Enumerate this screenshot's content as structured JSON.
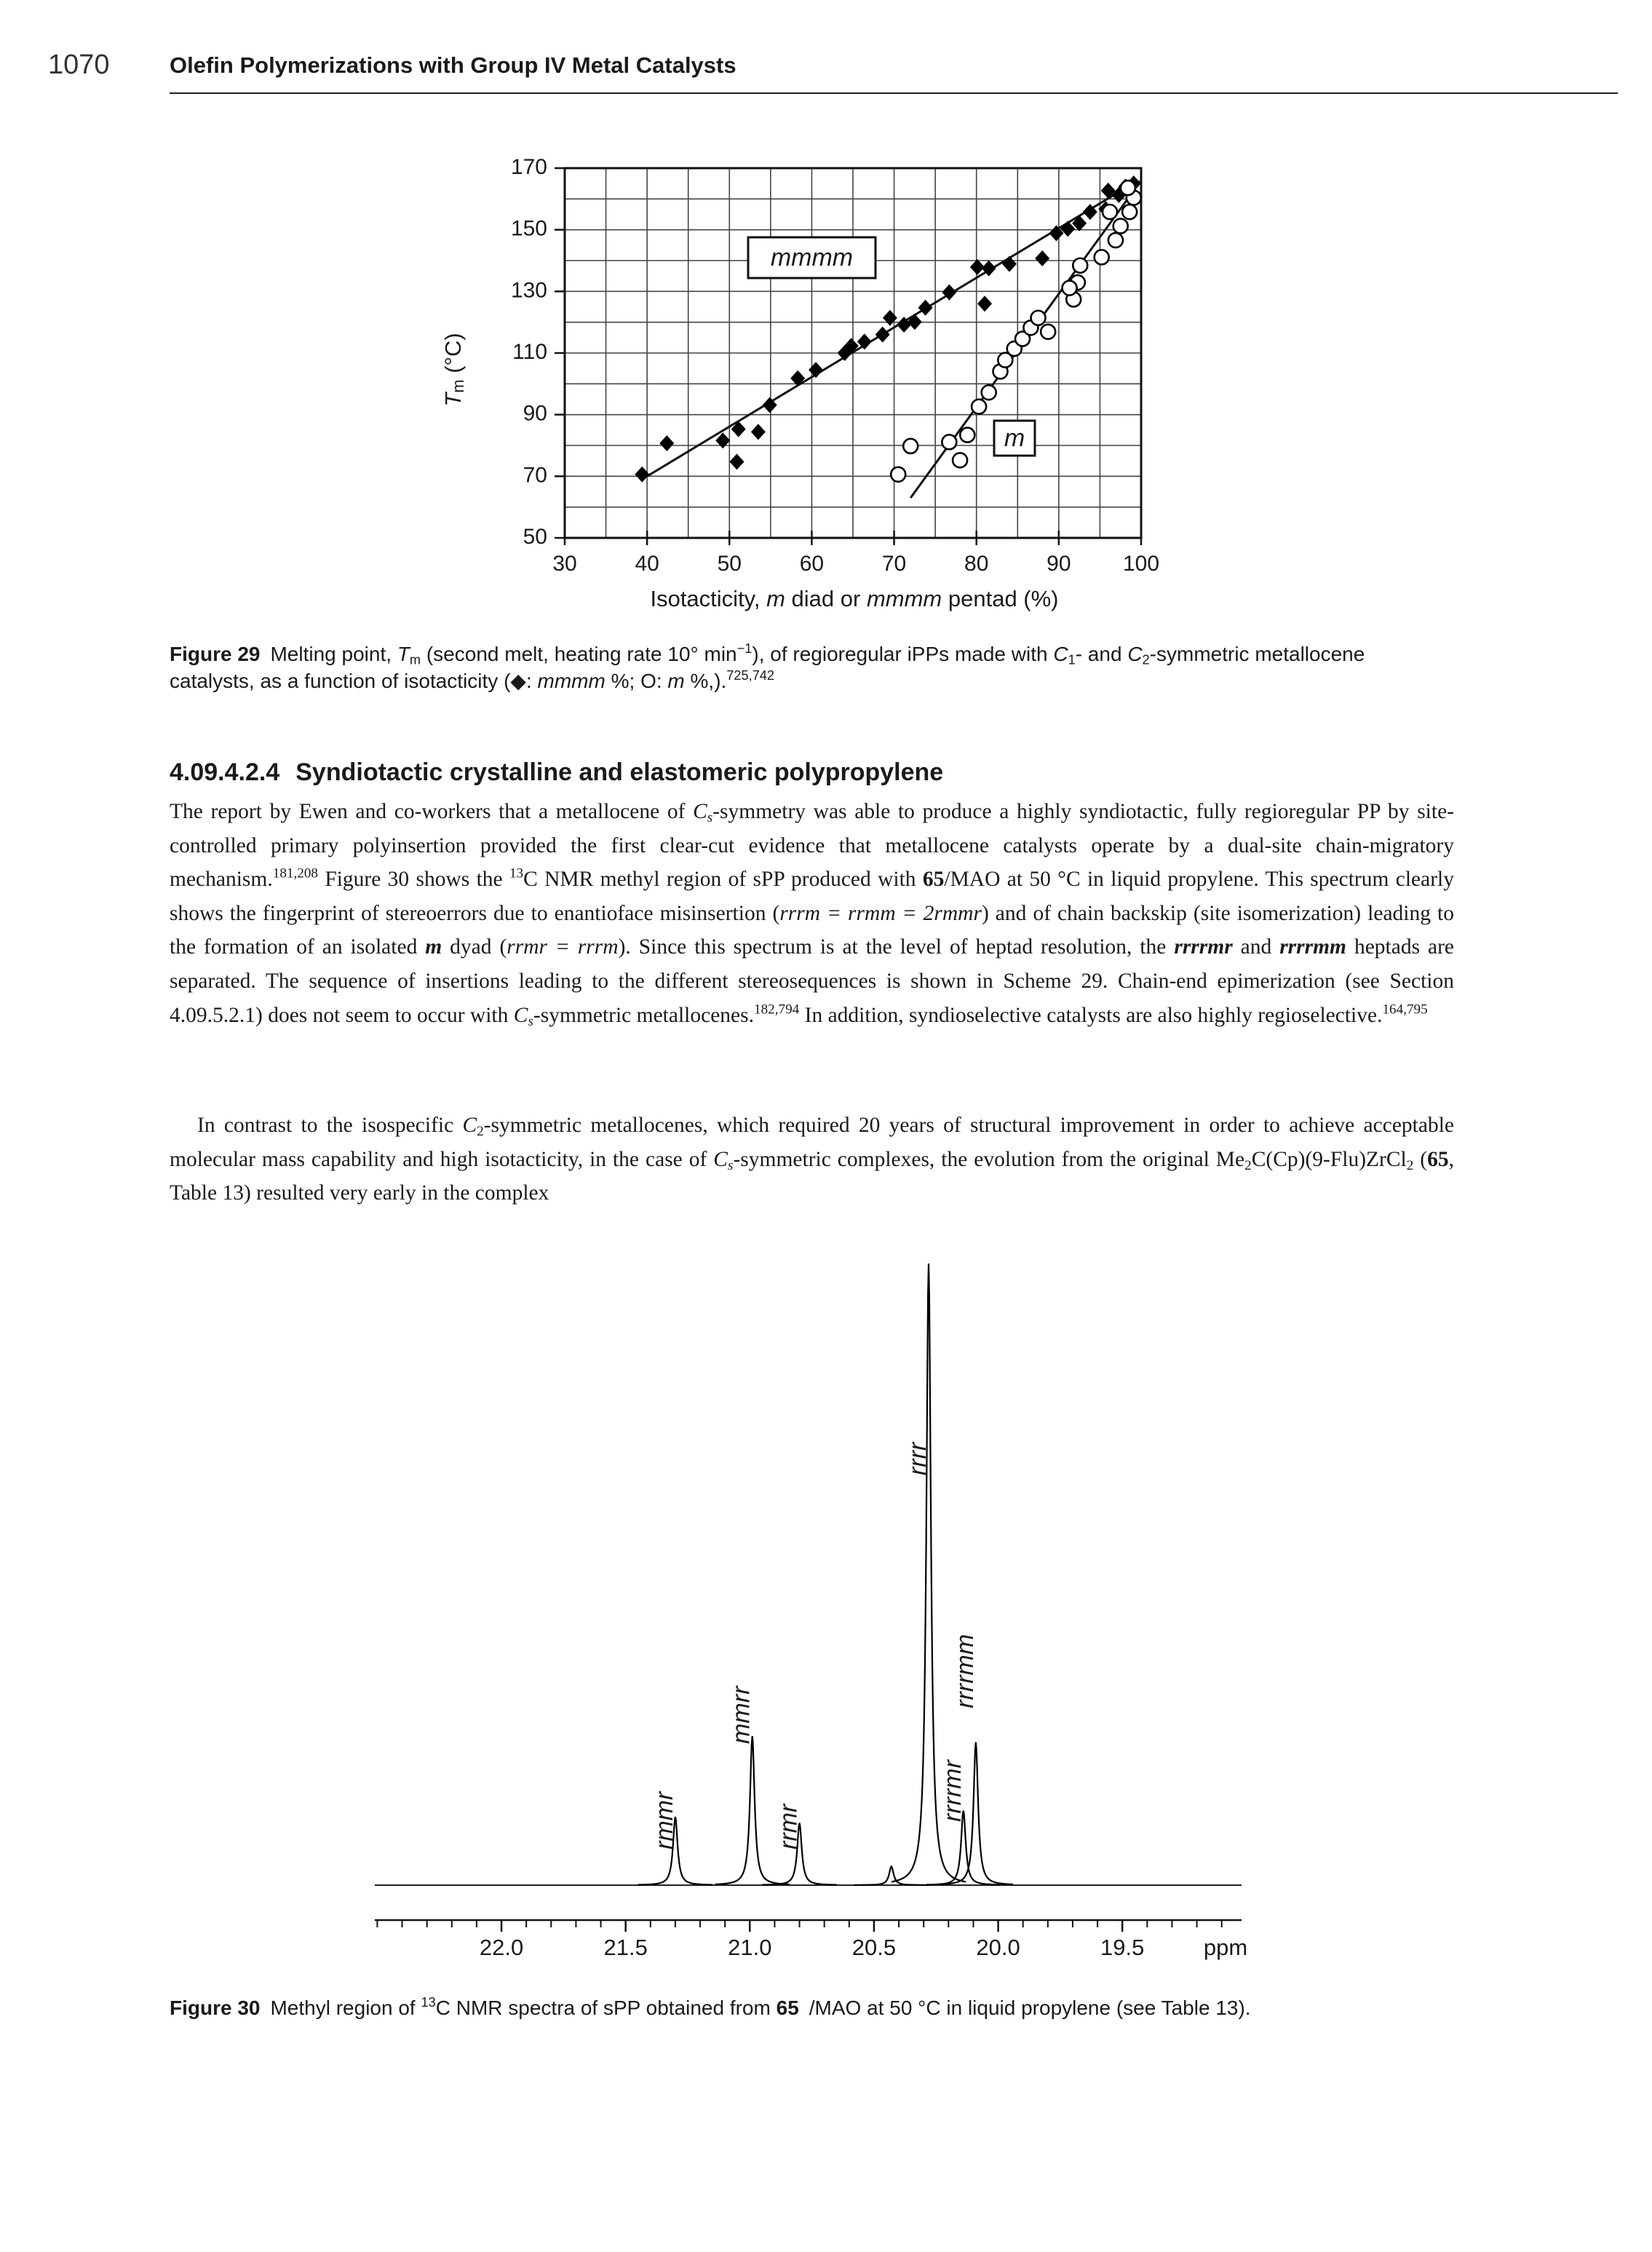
{
  "header": {
    "page_number": "1070",
    "running_title": "Olefin Polymerizations with Group IV Metal Catalysts"
  },
  "chart_data": [
    {
      "type": "scatter",
      "xlabel": [
        "Isotacticity, ",
        "m",
        " diad or ",
        "mmmm",
        " pentad (%)"
      ],
      "ylabel": [
        "T",
        "m",
        " (°C)"
      ],
      "xlim": [
        30,
        100
      ],
      "ylim": [
        50,
        170
      ],
      "xticks": [
        30,
        40,
        50,
        60,
        70,
        80,
        90,
        100
      ],
      "yticks": [
        50,
        70,
        90,
        110,
        130,
        150,
        170
      ],
      "xminor": [
        35,
        45,
        55,
        65,
        75,
        85,
        95
      ],
      "yminor": [
        60,
        80,
        100,
        120,
        140,
        160
      ],
      "grid": true,
      "series": [
        {
          "name": "mmmm",
          "marker": "diamond",
          "color": "#000000",
          "x": [
            39.4,
            42.4,
            49.2,
            51.1,
            53.5,
            50.9,
            54.9,
            58.3,
            60.5,
            64,
            64.8,
            66.4,
            68.6,
            69.5,
            71.2,
            72.5,
            73.8,
            76.7,
            80.1,
            81,
            81.5,
            84,
            88,
            89.7,
            91.1,
            92.5,
            93.8,
            95.7,
            97.3,
            98.1,
            99.1,
            96
          ],
          "y": [
            70.6,
            80.7,
            81.6,
            85.3,
            84.4,
            74.7,
            93.1,
            101.8,
            104.5,
            110,
            112.3,
            113.7,
            116,
            121.4,
            119.2,
            120.1,
            124.7,
            129.7,
            137.9,
            126,
            137.5,
            138.9,
            140.7,
            148.9,
            150.3,
            152.1,
            155.8,
            156.7,
            161.3,
            164,
            165,
            162.7
          ],
          "fit": {
            "x": [
              40,
              99
            ],
            "y": [
              70,
              165
            ]
          }
        },
        {
          "name": "m",
          "marker": "circle",
          "color": "#000000",
          "x": [
            70.5,
            72,
            78,
            76.7,
            78.9,
            80.3,
            81.5,
            82.9,
            83.5,
            84.6,
            85.6,
            86.6,
            87.5,
            88.7,
            91.8,
            92.3,
            91.3,
            92.6,
            95.2,
            96.9,
            97.5,
            98.6,
            99.1,
            98.4,
            96.2
          ],
          "y": [
            70.6,
            79.8,
            75.2,
            81.1,
            83.4,
            92.6,
            97.2,
            104,
            107.7,
            111.4,
            114.6,
            118.2,
            121.4,
            116.9,
            127.4,
            132.9,
            131.1,
            138.4,
            141.1,
            146.6,
            151.2,
            155.8,
            160.4,
            163.6,
            155.8
          ],
          "fit": {
            "x": [
              72,
              100
            ],
            "y": [
              63,
              166
            ]
          }
        }
      ]
    },
    {
      "type": "line",
      "xlabel": "ppm",
      "xlim": [
        22.51,
        19.02
      ],
      "xticks": [
        {
          "value": 22,
          "label": "22.0"
        },
        21.5,
        {
          "value": 21,
          "label": "21.0"
        },
        20.5,
        {
          "value": 20,
          "label": "20.0"
        },
        19.5
      ],
      "xminor": [
        22.5,
        22.4,
        22.3,
        22.2,
        22.1,
        21.9,
        21.8,
        21.7,
        21.6,
        21.4,
        21.3,
        21.2,
        21.1,
        20.9,
        20.8,
        20.7,
        20.6,
        20.4,
        20.3,
        20.2,
        20.1,
        19.9,
        19.8,
        19.7,
        19.6,
        19.4,
        19.3,
        19.2,
        19.1
      ],
      "color": "#000000",
      "x": [
        21.3,
        20.99,
        20.8,
        20.43,
        20.28,
        20.14,
        20.09
      ],
      "values": [
        11,
        24,
        10,
        3,
        100,
        12,
        23
      ],
      "labels": [
        "rmmr",
        "mmrr",
        "rrmr",
        null,
        "rrrr",
        "rrrrmr",
        "rrrrmm"
      ]
    }
  ],
  "captions": [
    {
      "label": "Figure 29",
      "runs": [
        "Melting point, ",
        "T",
        "m",
        " (second melt, heating rate 10° min",
        "−1",
        "), of regioregular iPPs made with ",
        "C",
        "1",
        "- and ",
        "C",
        "2",
        "-symmetric metallocene catalysts, as a function of isotacticity (",
        "◆",
        ": ",
        "mmmm",
        " %; ",
        "O",
        ": ",
        "m",
        " %,).",
        "725,742"
      ]
    },
    {
      "label": "Figure 30",
      "runs": [
        "Methyl region of ",
        "13",
        "C NMR spectra of sPP obtained from ",
        "65",
        "/MAO at 50 °C in liquid propylene (see Table 13)."
      ]
    }
  ],
  "section": {
    "number": "4.09.4.2.4",
    "title": "Syndiotactic crystalline and elastomeric polypropylene"
  },
  "paragraphs": [
    [
      "The report by Ewen and co-workers that a metallocene of ",
      "C",
      "s",
      "-symmetry was able to produce a highly syndiotactic, fully regioregular PP by site-controlled primary polyinsertion provided the first clear-cut evidence that metallocene catalysts operate by a dual-site chain-migratory mechanism.",
      "181,208",
      " Figure 30 shows the ",
      "13",
      "C NMR methyl region of sPP produced with ",
      "65",
      "/MAO at 50 °C in liquid propylene. This spectrum clearly shows the fingerprint of stereoerrors due to enantioface misinsertion (",
      "rrrm = rrmm = 2rmmr",
      ") and of chain backskip (site isomerization) leading to the formation of an isolated ",
      "m",
      " dyad (",
      "rrmr = rrrm",
      "). Since this spectrum is at the level of heptad resolution, the ",
      "rrrrmr",
      " and ",
      "rrrrmm",
      " heptads are separated. The sequence of insertions leading to the different stereosequences is shown in Scheme 29. Chain-end epimerization (see Section 4.09.5.2.1) does not seem to occur with ",
      "C",
      "s",
      "-symmetric metallocenes.",
      "182,794",
      " In addition, syndioselective catalysts are also highly regioselective.",
      "164,795"
    ],
    [
      "In contrast to the isospecific ",
      "C",
      "2",
      "-symmetric metallocenes, which required 20 years of structural improvement in order to achieve acceptable molecular mass capability and high isotacticity, in the case of ",
      "C",
      "s",
      "-symmetric complexes, the evolution from the original Me",
      "2",
      "C(Cp)(9-Flu)ZrCl",
      "2",
      " (",
      "65",
      ", Table 13) resulted very early in the complex"
    ]
  ]
}
